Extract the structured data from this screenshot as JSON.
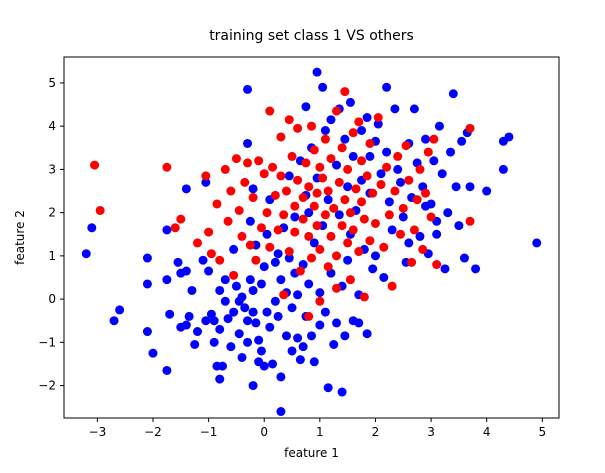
{
  "chart_data": {
    "type": "scatter",
    "title": "training set class 1 VS others",
    "xlabel": "feature 1",
    "ylabel": "feature 2",
    "xlim": [
      -3.6,
      5.3
    ],
    "ylim": [
      -2.75,
      5.6
    ],
    "xticks": [
      -3,
      -2,
      -1,
      0,
      1,
      2,
      3,
      4,
      5
    ],
    "yticks": [
      -2,
      -1,
      0,
      1,
      2,
      3,
      4,
      5
    ],
    "grid": false,
    "series": [
      {
        "color": "#0000ff",
        "points": [
          [
            -3.2,
            1.05
          ],
          [
            -3.1,
            1.65
          ],
          [
            -2.7,
            -0.5
          ],
          [
            -2.6,
            -0.25
          ],
          [
            -2.1,
            0.95
          ],
          [
            -2.1,
            0.35
          ],
          [
            -2.1,
            -0.75
          ],
          [
            -2.0,
            -1.25
          ],
          [
            -1.75,
            1.6
          ],
          [
            -1.75,
            0.45
          ],
          [
            -1.75,
            -1.65
          ],
          [
            -1.7,
            -0.35
          ],
          [
            -1.55,
            0.85
          ],
          [
            -1.5,
            0.6
          ],
          [
            -1.4,
            0.65
          ],
          [
            -1.4,
            2.55
          ],
          [
            -1.5,
            -0.65
          ],
          [
            -1.4,
            -0.6
          ],
          [
            -1.35,
            -0.4
          ],
          [
            -1.3,
            0.2
          ],
          [
            -1.25,
            -1.05
          ],
          [
            -1.2,
            -0.75
          ],
          [
            -1.1,
            0.9
          ],
          [
            -1.05,
            2.7
          ],
          [
            -1.05,
            -0.5
          ],
          [
            -1.0,
            0.65
          ],
          [
            -0.95,
            -0.35
          ],
          [
            -0.9,
            -0.5
          ],
          [
            -0.9,
            -1.0
          ],
          [
            -0.85,
            -1.55
          ],
          [
            -0.8,
            -1.85
          ],
          [
            -0.8,
            0.2
          ],
          [
            -0.8,
            -0.7
          ],
          [
            -0.75,
            -1.55
          ],
          [
            -0.7,
            0.45
          ],
          [
            -0.7,
            -0.05
          ],
          [
            -0.65,
            -0.45
          ],
          [
            -0.6,
            -1.1
          ],
          [
            -0.55,
            1.15
          ],
          [
            -0.55,
            -0.3
          ],
          [
            -0.5,
            0.3
          ],
          [
            -0.45,
            -0.05
          ],
          [
            -0.45,
            -0.8
          ],
          [
            -0.4,
            0.05
          ],
          [
            -0.4,
            -1.35
          ],
          [
            -0.35,
            -0.2
          ],
          [
            -0.3,
            -0.5
          ],
          [
            -0.3,
            -1.0
          ],
          [
            -0.25,
            1.8
          ],
          [
            -0.2,
            0.2
          ],
          [
            -0.2,
            -0.3
          ],
          [
            -0.15,
            -0.55
          ],
          [
            -0.1,
            -0.95
          ],
          [
            -0.05,
            -1.2
          ],
          [
            -0.3,
            4.85
          ],
          [
            -0.3,
            3.6
          ],
          [
            -0.25,
            0.45
          ],
          [
            -0.2,
            -2.0
          ],
          [
            -0.2,
            2.55
          ],
          [
            -0.15,
            1.25
          ],
          [
            -0.1,
            -1.45
          ],
          [
            -0.05,
            0.35
          ],
          [
            0.0,
            -1.55
          ],
          [
            0.0,
            0.75
          ],
          [
            0.05,
            1.5
          ],
          [
            0.05,
            -0.3
          ],
          [
            0.1,
            -0.65
          ],
          [
            0.1,
            2.3
          ],
          [
            0.15,
            -1.5
          ],
          [
            0.2,
            0.85
          ],
          [
            0.2,
            -0.05
          ],
          [
            0.25,
            -0.4
          ],
          [
            0.25,
            1.05
          ],
          [
            0.3,
            -1.8
          ],
          [
            0.3,
            -2.6
          ],
          [
            0.3,
            0.45
          ],
          [
            0.35,
            1.65
          ],
          [
            0.4,
            0.15
          ],
          [
            0.4,
            -0.85
          ],
          [
            0.45,
            2.85
          ],
          [
            0.45,
            0.95
          ],
          [
            0.5,
            -0.2
          ],
          [
            0.5,
            -1.2
          ],
          [
            0.55,
            0.6
          ],
          [
            0.55,
            1.9
          ],
          [
            0.6,
            -0.9
          ],
          [
            0.6,
            0.1
          ],
          [
            0.65,
            3.2
          ],
          [
            0.65,
            -1.4
          ],
          [
            0.7,
            -1.1
          ],
          [
            0.7,
            0.8
          ],
          [
            0.75,
            2.4
          ],
          [
            0.75,
            4.45
          ],
          [
            0.75,
            -0.4
          ],
          [
            0.8,
            2.0
          ],
          [
            0.8,
            0.35
          ],
          [
            0.85,
            3.5
          ],
          [
            0.85,
            -0.85
          ],
          [
            0.9,
            -1.45
          ],
          [
            0.9,
            1.3
          ],
          [
            0.95,
            5.25
          ],
          [
            0.95,
            2.8
          ],
          [
            1.0,
            -0.6
          ],
          [
            1.0,
            0.15
          ],
          [
            1.05,
            4.9
          ],
          [
            1.05,
            1.7
          ],
          [
            1.1,
            3.9
          ],
          [
            1.1,
            -0.3
          ],
          [
            1.15,
            -2.05
          ],
          [
            1.15,
            2.3
          ],
          [
            1.2,
            4.15
          ],
          [
            1.2,
            0.6
          ],
          [
            1.25,
            -1.05
          ],
          [
            1.3,
            3.1
          ],
          [
            1.3,
            -0.55
          ],
          [
            1.35,
            4.4
          ],
          [
            1.35,
            1.95
          ],
          [
            1.4,
            0.3
          ],
          [
            1.4,
            -2.15
          ],
          [
            1.45,
            3.7
          ],
          [
            1.45,
            -0.85
          ],
          [
            1.5,
            2.6
          ],
          [
            1.5,
            0.9
          ],
          [
            1.55,
            4.55
          ],
          [
            1.55,
            1.5
          ],
          [
            1.6,
            -0.5
          ],
          [
            1.6,
            3.3
          ],
          [
            1.65,
            2.05
          ],
          [
            1.7,
            0.1
          ],
          [
            1.7,
            -0.55
          ],
          [
            1.75,
            3.9
          ],
          [
            1.75,
            2.75
          ],
          [
            1.8,
            1.15
          ],
          [
            1.85,
            4.2
          ],
          [
            1.85,
            -0.8
          ],
          [
            1.9,
            3.3
          ],
          [
            1.9,
            2.45
          ],
          [
            1.95,
            0.7
          ],
          [
            2.0,
            3.65
          ],
          [
            2.0,
            1.0
          ],
          [
            2.05,
            4.05
          ],
          [
            2.1,
            2.9
          ],
          [
            2.15,
            0.5
          ],
          [
            2.2,
            4.9
          ],
          [
            2.2,
            3.4
          ],
          [
            2.25,
            2.25
          ],
          [
            2.3,
            1.6
          ],
          [
            2.35,
            4.4
          ],
          [
            2.4,
            3.0
          ],
          [
            2.45,
            2.7
          ],
          [
            2.5,
            1.9
          ],
          [
            2.55,
            0.85
          ],
          [
            2.6,
            3.6
          ],
          [
            2.65,
            2.35
          ],
          [
            2.7,
            4.4
          ],
          [
            2.75,
            3.15
          ],
          [
            2.8,
            1.45
          ],
          [
            2.85,
            2.6
          ],
          [
            2.9,
            3.7
          ],
          [
            2.95,
            1.05
          ],
          [
            3.0,
            2.2
          ],
          [
            3.05,
            3.2
          ],
          [
            3.1,
            1.5
          ],
          [
            3.15,
            4.0
          ],
          [
            3.2,
            2.9
          ],
          [
            3.25,
            0.7
          ],
          [
            3.3,
            2.0
          ],
          [
            3.35,
            3.4
          ],
          [
            3.4,
            4.75
          ],
          [
            3.45,
            2.6
          ],
          [
            3.5,
            1.7
          ],
          [
            3.55,
            3.65
          ],
          [
            3.6,
            0.95
          ],
          [
            3.65,
            3.85
          ],
          [
            3.7,
            2.6
          ],
          [
            3.8,
            0.7
          ],
          [
            4.0,
            2.5
          ],
          [
            4.3,
            3.0
          ],
          [
            4.3,
            3.65
          ],
          [
            4.4,
            3.75
          ],
          [
            4.9,
            1.3
          ],
          [
            3.1,
            1.8
          ],
          [
            2.9,
            2.15
          ],
          [
            2.6,
            1.3
          ]
        ]
      },
      {
        "color": "#ff0000",
        "points": [
          [
            -3.05,
            3.1
          ],
          [
            -2.95,
            2.05
          ],
          [
            -1.75,
            3.05
          ],
          [
            -1.6,
            1.65
          ],
          [
            -1.5,
            1.85
          ],
          [
            -1.2,
            1.3
          ],
          [
            -1.05,
            2.85
          ],
          [
            -1.0,
            1.55
          ],
          [
            -0.95,
            1.05
          ],
          [
            -0.85,
            2.2
          ],
          [
            -0.8,
            0.9
          ],
          [
            -0.7,
            3.0
          ],
          [
            -0.65,
            1.8
          ],
          [
            -0.6,
            2.5
          ],
          [
            -0.55,
            0.55
          ],
          [
            -0.5,
            3.25
          ],
          [
            -0.45,
            2.05
          ],
          [
            -0.4,
            1.45
          ],
          [
            -0.35,
            2.7
          ],
          [
            -0.3,
            3.15
          ],
          [
            -0.25,
            1.25
          ],
          [
            -0.2,
            2.35
          ],
          [
            -0.15,
            0.9
          ],
          [
            -0.1,
            3.2
          ],
          [
            -0.05,
            1.65
          ],
          [
            0.0,
            2.9
          ],
          [
            0.05,
            2.0
          ],
          [
            0.1,
            4.35
          ],
          [
            0.1,
            1.2
          ],
          [
            0.15,
            3.05
          ],
          [
            0.2,
            2.4
          ],
          [
            0.25,
            1.6
          ],
          [
            0.3,
            3.75
          ],
          [
            0.3,
            2.85
          ],
          [
            0.35,
            0.1
          ],
          [
            0.35,
            1.95
          ],
          [
            0.4,
            2.5
          ],
          [
            0.45,
            4.15
          ],
          [
            0.45,
            1.1
          ],
          [
            0.5,
            3.3
          ],
          [
            0.55,
            2.15
          ],
          [
            0.55,
            1.55
          ],
          [
            0.6,
            2.75
          ],
          [
            0.6,
            3.95
          ],
          [
            0.65,
            0.65
          ],
          [
            0.7,
            1.85
          ],
          [
            0.7,
            2.35
          ],
          [
            0.75,
            3.15
          ],
          [
            0.8,
            1.45
          ],
          [
            0.8,
            2.6
          ],
          [
            0.85,
            4.0
          ],
          [
            0.85,
            0.95
          ],
          [
            0.9,
            2.15
          ],
          [
            0.9,
            3.45
          ],
          [
            0.95,
            1.7
          ],
          [
            0.95,
            2.45
          ],
          [
            1.0,
            3.05
          ],
          [
            1.0,
            1.15
          ],
          [
            1.05,
            2.8
          ],
          [
            1.1,
            1.95
          ],
          [
            1.1,
            3.7
          ],
          [
            1.15,
            0.75
          ],
          [
            1.15,
            2.5
          ],
          [
            1.2,
            1.45
          ],
          [
            1.2,
            3.25
          ],
          [
            1.25,
            2.1
          ],
          [
            1.3,
            4.35
          ],
          [
            1.3,
            1.0
          ],
          [
            1.35,
            2.7
          ],
          [
            1.4,
            1.7
          ],
          [
            1.4,
            3.5
          ],
          [
            1.45,
            4.8
          ],
          [
            1.45,
            2.3
          ],
          [
            1.5,
            1.3
          ],
          [
            1.5,
            3.0
          ],
          [
            1.55,
            0.45
          ],
          [
            1.55,
            2.0
          ],
          [
            1.6,
            3.85
          ],
          [
            1.6,
            1.6
          ],
          [
            1.65,
            2.55
          ],
          [
            1.7,
            4.1
          ],
          [
            1.7,
            1.1
          ],
          [
            1.75,
            2.25
          ],
          [
            1.75,
            3.2
          ],
          [
            1.8,
            0.05
          ],
          [
            1.8,
            1.85
          ],
          [
            1.85,
            2.85
          ],
          [
            1.9,
            3.6
          ],
          [
            1.9,
            1.35
          ],
          [
            1.95,
            2.45
          ],
          [
            2.0,
            1.75
          ],
          [
            2.05,
            4.2
          ],
          [
            2.1,
            2.65
          ],
          [
            2.15,
            1.2
          ],
          [
            2.2,
            3.05
          ],
          [
            2.25,
            1.95
          ],
          [
            2.3,
            0.3
          ],
          [
            2.35,
            2.5
          ],
          [
            2.4,
            3.3
          ],
          [
            2.45,
            1.5
          ],
          [
            2.5,
            2.1
          ],
          [
            2.55,
            3.55
          ],
          [
            2.6,
            2.75
          ],
          [
            2.65,
            0.85
          ],
          [
            2.7,
            1.6
          ],
          [
            2.75,
            2.3
          ],
          [
            2.8,
            3.0
          ],
          [
            2.85,
            1.15
          ],
          [
            2.9,
            2.45
          ],
          [
            2.95,
            3.4
          ],
          [
            3.05,
            3.7
          ],
          [
            3.1,
            0.8
          ],
          [
            3.0,
            1.9
          ],
          [
            3.7,
            3.95
          ],
          [
            3.7,
            1.8
          ],
          [
            1.3,
            0.25
          ],
          [
            1.0,
            -0.05
          ],
          [
            0.8,
            -0.4
          ]
        ]
      }
    ]
  }
}
